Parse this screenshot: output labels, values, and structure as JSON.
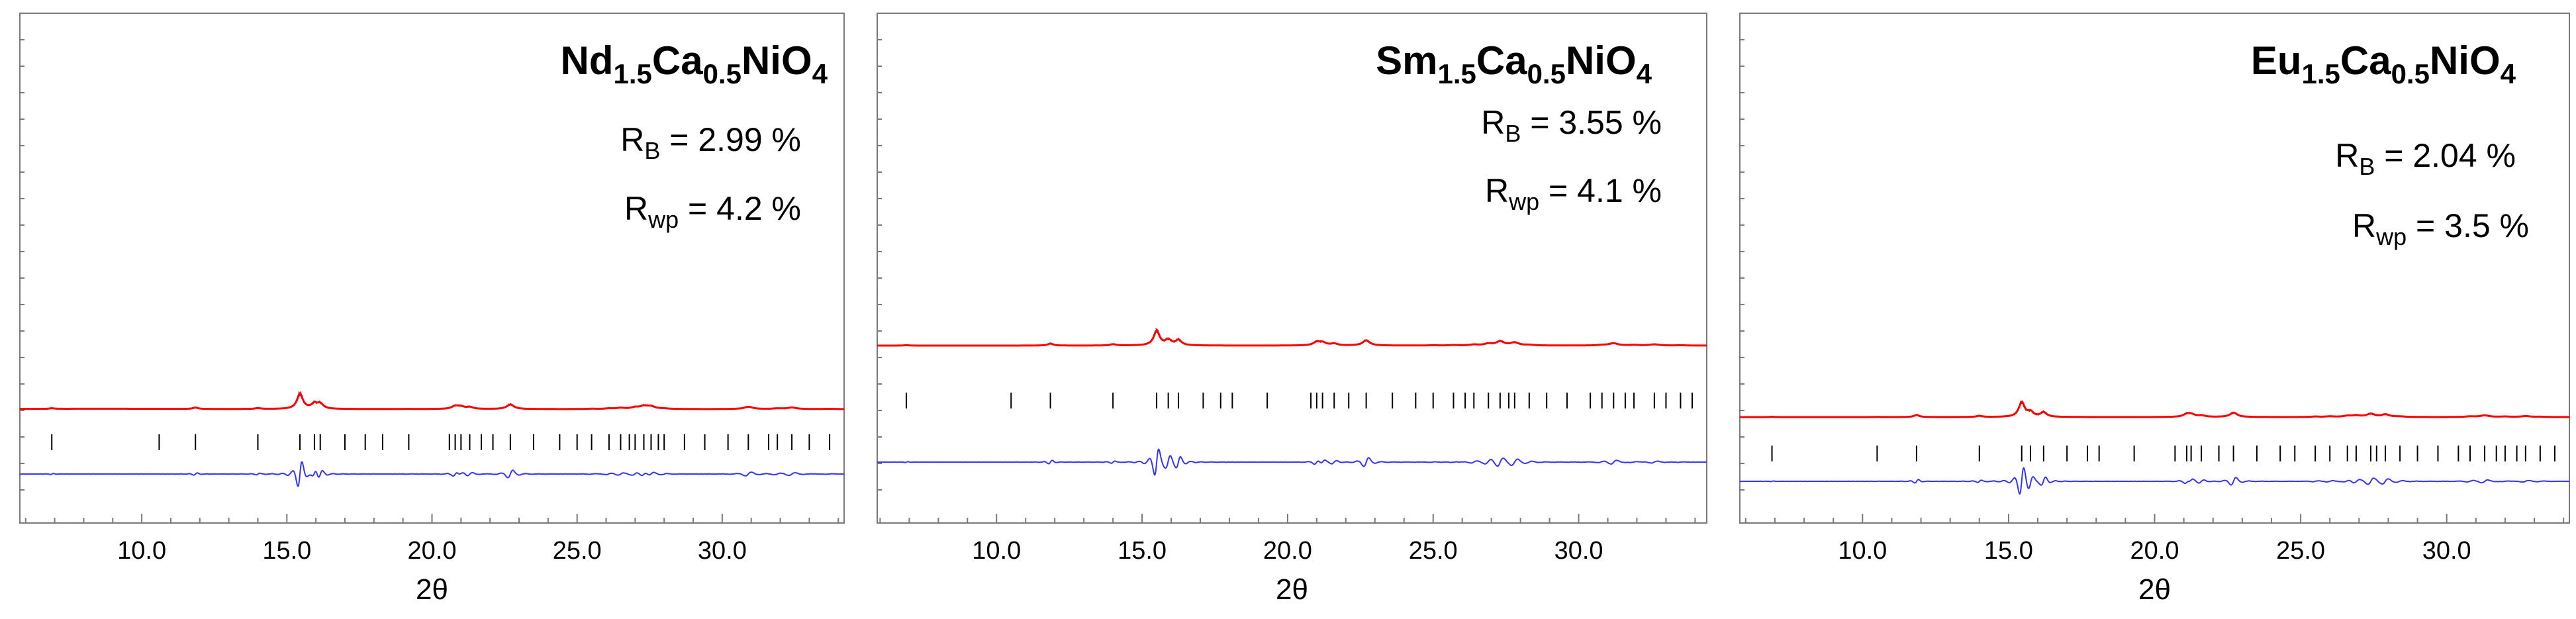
{
  "figure": {
    "colors": {
      "calculated": "#ff0000",
      "observed": "#8b0000",
      "difference": "#3333ff",
      "bragg_ticks": "#000000",
      "frame": "#7a7a7a",
      "text": "#000000"
    }
  },
  "chart_data": [
    {
      "type": "line",
      "title_parts": [
        {
          "text": "Nd",
          "sub": false
        },
        {
          "text": "1.5",
          "sub": true
        },
        {
          "text": "Ca",
          "sub": false
        },
        {
          "text": "0.5",
          "sub": true
        },
        {
          "text": "NiO",
          "sub": false
        },
        {
          "text": "4",
          "sub": true
        }
      ],
      "annotations": {
        "rb": {
          "symbol": "R",
          "sub": "B",
          "value": " = 2.99 %"
        },
        "rwp": {
          "symbol": "R",
          "sub": "wp",
          "value": " = 4.2 %"
        }
      },
      "xlabel": "2θ",
      "xlim": [
        5.8,
        34.2
      ],
      "xticks": [
        "10.0",
        "15.0",
        "20.0",
        "25.0",
        "30.0"
      ],
      "xtick_values": [
        10,
        15,
        20,
        25,
        30
      ],
      "ylim": [
        0,
        1
      ],
      "grid": false,
      "background_hump": true,
      "peaks": [
        {
          "x": 6.9,
          "h": 0.04
        },
        {
          "x": 11.85,
          "h": 0.09
        },
        {
          "x": 14.0,
          "h": 0.06
        },
        {
          "x": 15.45,
          "h": 1.0
        },
        {
          "x": 15.95,
          "h": 0.33
        },
        {
          "x": 16.15,
          "h": 0.32
        },
        {
          "x": 19.2,
          "h": 0.01
        },
        {
          "x": 20.8,
          "h": 0.19
        },
        {
          "x": 21.0,
          "h": 0.13
        },
        {
          "x": 21.3,
          "h": 0.12
        },
        {
          "x": 22.7,
          "h": 0.3
        },
        {
          "x": 25.5,
          "h": 0.02
        },
        {
          "x": 26.1,
          "h": 0.04
        },
        {
          "x": 26.5,
          "h": 0.07
        },
        {
          "x": 27.0,
          "h": 0.1
        },
        {
          "x": 27.3,
          "h": 0.17
        },
        {
          "x": 27.55,
          "h": 0.16
        },
        {
          "x": 28.0,
          "h": 0.03
        },
        {
          "x": 30.9,
          "h": 0.15
        },
        {
          "x": 31.9,
          "h": 0.04
        },
        {
          "x": 32.4,
          "h": 0.1
        },
        {
          "x": 33.7,
          "h": 0.02
        }
      ],
      "bragg_positions": [
        6.9,
        10.6,
        11.85,
        14.0,
        15.45,
        15.95,
        16.15,
        17.0,
        17.7,
        18.3,
        19.2,
        20.6,
        20.8,
        21.0,
        21.3,
        21.7,
        22.1,
        22.7,
        23.5,
        24.4,
        25.0,
        25.5,
        26.1,
        26.5,
        26.8,
        27.0,
        27.3,
        27.55,
        27.8,
        28.0,
        28.7,
        29.4,
        30.2,
        30.9,
        31.6,
        31.9,
        32.4,
        33.0,
        33.7
      ]
    },
    {
      "type": "line",
      "title_parts": [
        {
          "text": "Sm",
          "sub": false
        },
        {
          "text": "1.5",
          "sub": true
        },
        {
          "text": "Ca",
          "sub": false
        },
        {
          "text": "0.5",
          "sub": true
        },
        {
          "text": "NiO",
          "sub": false
        },
        {
          "text": "4",
          "sub": true
        }
      ],
      "annotations": {
        "rb": {
          "symbol": "R",
          "sub": "B",
          "value": " = 3.55 %"
        },
        "rwp": {
          "symbol": "R",
          "sub": "wp",
          "value": " = 4.1 %"
        }
      },
      "xlabel": "2θ",
      "xlim": [
        5.9,
        34.4
      ],
      "xticks": [
        "10.0",
        "15.0",
        "20.0",
        "25.0",
        "30.0"
      ],
      "xtick_values": [
        10,
        15,
        20,
        25,
        30
      ],
      "ylim": [
        0,
        1
      ],
      "grid": false,
      "background_hump": false,
      "peaks": [
        {
          "x": 6.9,
          "h": 0.03
        },
        {
          "x": 11.85,
          "h": 0.14
        },
        {
          "x": 14.0,
          "h": 0.09
        },
        {
          "x": 15.5,
          "h": 1.0
        },
        {
          "x": 15.9,
          "h": 0.36
        },
        {
          "x": 16.25,
          "h": 0.36
        },
        {
          "x": 21.0,
          "h": 0.22
        },
        {
          "x": 21.2,
          "h": 0.19
        },
        {
          "x": 21.6,
          "h": 0.12
        },
        {
          "x": 22.7,
          "h": 0.35
        },
        {
          "x": 25.0,
          "h": 0.02
        },
        {
          "x": 25.7,
          "h": 0.03
        },
        {
          "x": 26.4,
          "h": 0.06
        },
        {
          "x": 26.9,
          "h": 0.12
        },
        {
          "x": 27.3,
          "h": 0.27
        },
        {
          "x": 27.8,
          "h": 0.2
        },
        {
          "x": 28.3,
          "h": 0.04
        },
        {
          "x": 30.8,
          "h": 0.04
        },
        {
          "x": 31.2,
          "h": 0.15
        },
        {
          "x": 31.9,
          "h": 0.04
        },
        {
          "x": 32.6,
          "h": 0.08
        },
        {
          "x": 33.5,
          "h": 0.02
        }
      ],
      "bragg_positions": [
        6.9,
        10.5,
        11.85,
        14.0,
        15.5,
        15.9,
        16.25,
        17.1,
        17.7,
        18.1,
        19.3,
        20.8,
        21.0,
        21.2,
        21.6,
        22.1,
        22.7,
        23.6,
        24.4,
        25.0,
        25.7,
        26.1,
        26.4,
        26.9,
        27.3,
        27.6,
        27.8,
        28.3,
        28.9,
        29.6,
        30.4,
        30.8,
        31.2,
        31.6,
        31.9,
        32.6,
        33.0,
        33.5,
        33.9
      ]
    },
    {
      "type": "line",
      "title_parts": [
        {
          "text": "Eu",
          "sub": false
        },
        {
          "text": "1.5",
          "sub": true
        },
        {
          "text": "Ca",
          "sub": false
        },
        {
          "text": "0.5",
          "sub": true
        },
        {
          "text": "NiO",
          "sub": false
        },
        {
          "text": "4",
          "sub": true
        }
      ],
      "annotations": {
        "rb": {
          "symbol": "R",
          "sub": "B",
          "value": " = 2.04 %"
        },
        "rwp": {
          "symbol": "R",
          "sub": "wp",
          "value": " = 3.5 %"
        }
      },
      "xlabel": "2θ",
      "xlim": [
        5.8,
        34.2
      ],
      "xticks": [
        "10.0",
        "15.0",
        "20.0",
        "25.0",
        "30.0"
      ],
      "xtick_values": [
        10,
        15,
        20,
        25,
        30
      ],
      "ylim": [
        0,
        1
      ],
      "grid": false,
      "background_hump": false,
      "peaks": [
        {
          "x": 6.9,
          "h": 0.02
        },
        {
          "x": 10.5,
          "h": 0.01
        },
        {
          "x": 11.85,
          "h": 0.14
        },
        {
          "x": 14.0,
          "h": 0.08
        },
        {
          "x": 15.45,
          "h": 1.0
        },
        {
          "x": 15.75,
          "h": 0.31
        },
        {
          "x": 16.2,
          "h": 0.31
        },
        {
          "x": 21.1,
          "h": 0.17
        },
        {
          "x": 21.25,
          "h": 0.17
        },
        {
          "x": 21.6,
          "h": 0.1
        },
        {
          "x": 22.7,
          "h": 0.3
        },
        {
          "x": 25.5,
          "h": 0.03
        },
        {
          "x": 26.0,
          "h": 0.04
        },
        {
          "x": 26.6,
          "h": 0.07
        },
        {
          "x": 26.9,
          "h": 0.1
        },
        {
          "x": 27.4,
          "h": 0.21
        },
        {
          "x": 27.9,
          "h": 0.17
        },
        {
          "x": 28.4,
          "h": 0.03
        },
        {
          "x": 30.8,
          "h": 0.04
        },
        {
          "x": 31.3,
          "h": 0.11
        },
        {
          "x": 32.0,
          "h": 0.03
        },
        {
          "x": 32.7,
          "h": 0.06
        },
        {
          "x": 33.2,
          "h": 0.02
        }
      ],
      "bragg_positions": [
        6.9,
        10.5,
        11.85,
        14.0,
        15.45,
        15.75,
        16.2,
        17.0,
        17.7,
        18.1,
        19.3,
        20.7,
        21.1,
        21.25,
        21.6,
        22.2,
        22.7,
        23.5,
        24.3,
        24.8,
        25.5,
        26.0,
        26.6,
        26.9,
        27.4,
        27.6,
        27.9,
        28.4,
        29.0,
        29.7,
        30.4,
        30.8,
        31.3,
        31.7,
        32.0,
        32.4,
        32.7,
        33.2,
        33.7
      ]
    }
  ]
}
